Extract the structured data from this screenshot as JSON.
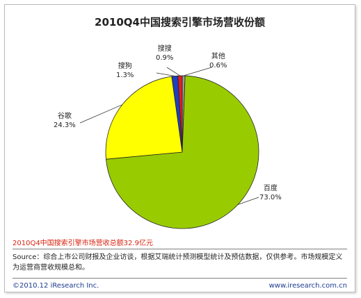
{
  "chart_data": {
    "type": "pie",
    "title": "2010Q4中国搜索引擎市场营收份额",
    "slices": [
      {
        "name": "百度",
        "value": 73.0,
        "label": "73.0%",
        "color": "#99cc00"
      },
      {
        "name": "谷歌",
        "value": 24.3,
        "label": "24.3%",
        "color": "#ffff00"
      },
      {
        "name": "搜狗",
        "value": 1.3,
        "label": "1.3%",
        "color": "#1f3fbf"
      },
      {
        "name": "搜搜",
        "value": 0.9,
        "label": "0.9%",
        "color": "#e01e1e"
      },
      {
        "name": "其他",
        "value": 0.6,
        "label": "0.6%",
        "color": "#9a9a9a"
      }
    ]
  },
  "note": "2010Q4中国搜索引擎市场营收总额32.9亿元",
  "source": "Source：综合上市公司财报及企业访谈，根据艾瑞统计预测模型统计及预估数据，仅供参考。市场规模定义为运营商营收规模总和。",
  "footer": {
    "copyright": "©2010.12 iResearch Inc.",
    "website": "www.iresearch.com.cn"
  }
}
